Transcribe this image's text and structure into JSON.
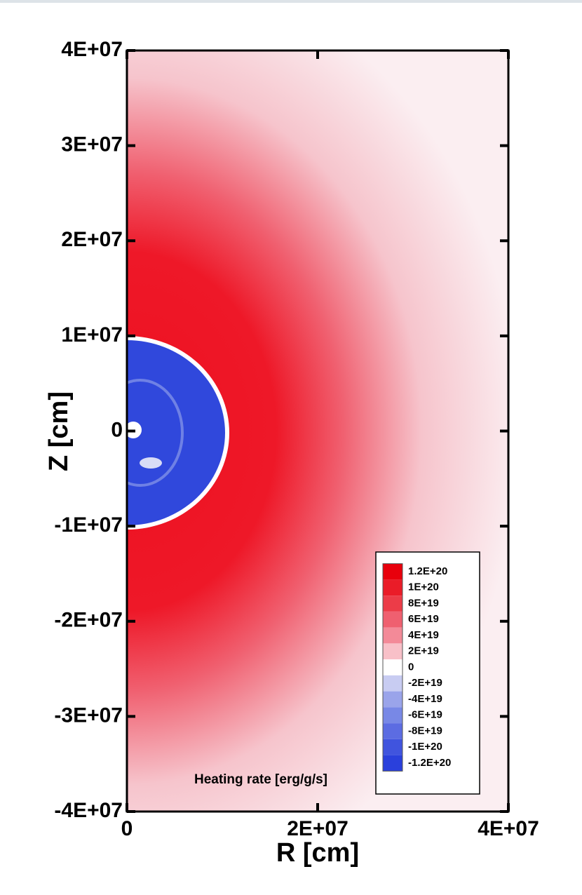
{
  "chart_data": {
    "type": "contour",
    "xlabel": "R [cm]",
    "ylabel": "Z [cm]",
    "annotation": "Heating rate [erg/g/s]",
    "xlim": [
      0,
      40000000
    ],
    "ylim": [
      -40000000,
      40000000
    ],
    "xticks": [
      0,
      {
        "value": 20000000,
        "label": "2E+07"
      },
      {
        "value": 40000000,
        "label": "4E+07"
      }
    ],
    "yticks": [
      {
        "value": -40000000,
        "label": "-4E+07"
      },
      {
        "value": -30000000,
        "label": "-3E+07"
      },
      {
        "value": -20000000,
        "label": "-2E+07"
      },
      {
        "value": -10000000,
        "label": "-1E+07"
      },
      0,
      {
        "value": 10000000,
        "label": "1E+07"
      },
      {
        "value": 20000000,
        "label": "2E+07"
      },
      {
        "value": 30000000,
        "label": "3E+07"
      },
      {
        "value": 40000000,
        "label": "4E+07"
      }
    ],
    "colorbar": {
      "levels": [
        {
          "value": 1.2e+20,
          "label": "1.2E+20"
        },
        {
          "value": 1e+20,
          "label": "1E+20"
        },
        {
          "value": 8e+19,
          "label": "8E+19"
        },
        {
          "value": 6e+19,
          "label": "6E+19"
        },
        {
          "value": 4e+19,
          "label": "4E+19"
        },
        {
          "value": 2e+19,
          "label": "2E+19"
        },
        0,
        {
          "value": -2e+19,
          "label": "-2E+19"
        },
        {
          "value": -4e+19,
          "label": "-4E+19"
        },
        {
          "value": -6e+19,
          "label": "-6E+19"
        },
        {
          "value": -8e+19,
          "label": "-8E+19"
        },
        {
          "value": -1e+20,
          "label": "-1E+20"
        },
        {
          "value": -1.2e+20,
          "label": "-1.2E+20"
        }
      ],
      "colors": [
        "#e8000c",
        "#ea1c28",
        "#ec3c48",
        "#ef6070",
        "#f38a98",
        "#f8c0c8",
        "#ffffff",
        "#c8ccf2",
        "#9aa4ea",
        "#7888e6",
        "#5c6ce2",
        "#4054de",
        "#2a40dc"
      ]
    }
  }
}
